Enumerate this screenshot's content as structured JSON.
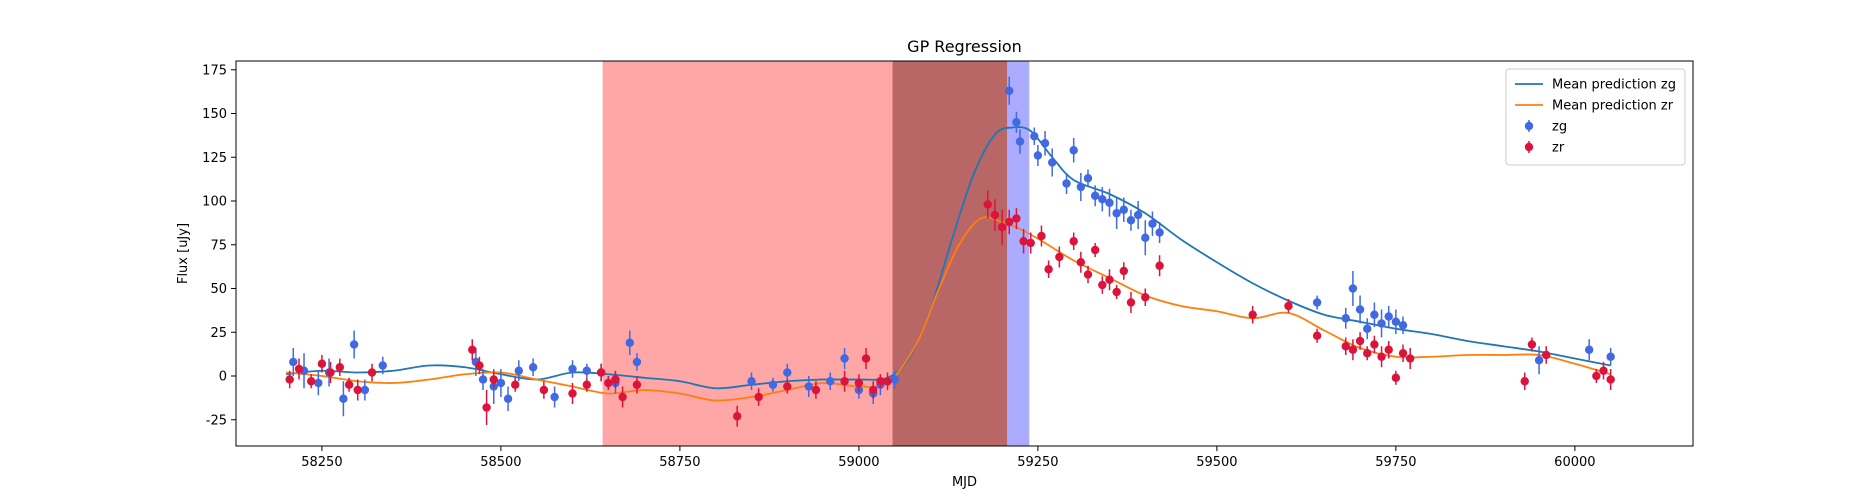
{
  "chart_data": {
    "type": "scatter",
    "title": "GP Regression",
    "xlabel": "MJD",
    "ylabel": "Flux [uJy]",
    "xlim": [
      58130,
      60165
    ],
    "ylim": [
      -40,
      180
    ],
    "xticks": [
      58250,
      58500,
      58750,
      59000,
      59250,
      59500,
      59750,
      60000
    ],
    "yticks": [
      -25,
      0,
      25,
      50,
      75,
      100,
      125,
      150,
      175
    ],
    "grid": false,
    "legend_position": "top-right",
    "shaded_regions": [
      {
        "x0": 58642,
        "x1": 59047,
        "color": "#ff0000",
        "opacity": 0.35
      },
      {
        "x0": 59047,
        "x1": 59207,
        "color": "#8b0000",
        "opacity": 0.6
      },
      {
        "x0": 59207,
        "x1": 59238,
        "color": "#0000ff",
        "opacity": 0.33
      }
    ],
    "series": [
      {
        "name": "Mean prediction zg",
        "kind": "line",
        "color": "#1f77b4",
        "x": [
          58200,
          58250,
          58300,
          58350,
          58400,
          58450,
          58500,
          58550,
          58600,
          58650,
          58700,
          58750,
          58800,
          58850,
          58900,
          58950,
          59000,
          59040,
          59070,
          59100,
          59130,
          59160,
          59190,
          59215,
          59240,
          59270,
          59300,
          59350,
          59400,
          59450,
          59500,
          59550,
          59600,
          59650,
          59700,
          59750,
          59800,
          59850,
          59900,
          59950,
          60000,
          60050
        ],
        "y": [
          1,
          3,
          2,
          3,
          6,
          5,
          1,
          -2,
          2,
          1,
          -1,
          -3,
          -7,
          -5,
          -3,
          -2,
          -2,
          -1,
          10,
          38,
          78,
          115,
          138,
          142,
          140,
          125,
          112,
          104,
          93,
          78,
          65,
          53,
          43,
          35,
          31,
          27,
          24,
          20,
          17,
          14,
          10,
          6
        ]
      },
      {
        "name": "Mean prediction zr",
        "kind": "line",
        "color": "#ff7f0e",
        "x": [
          58200,
          58250,
          58300,
          58350,
          58400,
          58450,
          58500,
          58550,
          58600,
          58650,
          58700,
          58750,
          58800,
          58850,
          58900,
          58950,
          59000,
          59040,
          59080,
          59110,
          59140,
          59170,
          59200,
          59230,
          59260,
          59300,
          59350,
          59400,
          59450,
          59500,
          59550,
          59600,
          59650,
          59700,
          59750,
          59800,
          59850,
          59900,
          59950,
          60000,
          60050
        ],
        "y": [
          2,
          0,
          -3,
          -4,
          -2,
          1,
          2,
          -2,
          -6,
          -10,
          -8,
          -10,
          -14,
          -12,
          -8,
          -4,
          -6,
          -4,
          18,
          48,
          75,
          90,
          88,
          83,
          76,
          66,
          56,
          46,
          40,
          37,
          33,
          36,
          26,
          16,
          11,
          11,
          12,
          12,
          12,
          7,
          1
        ]
      },
      {
        "name": "zg",
        "kind": "errorbar",
        "color": "#4169e1",
        "x": [
          58210,
          58225,
          58245,
          58260,
          58280,
          58295,
          58310,
          58335,
          58465,
          58475,
          58490,
          58500,
          58510,
          58525,
          58545,
          58575,
          58600,
          58620,
          58640,
          58660,
          58680,
          58690,
          58850,
          58880,
          58900,
          58930,
          58960,
          58980,
          59000,
          59020,
          59030,
          59050,
          59210,
          59220,
          59225,
          59245,
          59250,
          59260,
          59270,
          59290,
          59300,
          59310,
          59320,
          59330,
          59340,
          59350,
          59360,
          59370,
          59380,
          59390,
          59400,
          59410,
          59420,
          59640,
          59680,
          59690,
          59700,
          59710,
          59720,
          59730,
          59740,
          59750,
          59760,
          59950,
          60020,
          60050
        ],
        "y": [
          8,
          3,
          -4,
          2,
          -13,
          18,
          -8,
          6,
          8,
          -2,
          -6,
          -4,
          -13,
          3,
          5,
          -12,
          4,
          3,
          2,
          -4,
          19,
          8,
          -3,
          -5,
          2,
          -6,
          -3,
          10,
          -8,
          -10,
          -5,
          -2,
          163,
          145,
          134,
          137,
          126,
          133,
          122,
          110,
          129,
          108,
          113,
          103,
          101,
          99,
          93,
          95,
          89,
          92,
          79,
          87,
          82,
          42,
          33,
          50,
          38,
          27,
          35,
          30,
          34,
          31,
          29,
          9,
          15,
          11
        ],
        "err": [
          8,
          10,
          7,
          8,
          10,
          8,
          6,
          5,
          8,
          6,
          10,
          8,
          7,
          6,
          5,
          6,
          5,
          4,
          5,
          6,
          7,
          5,
          5,
          4,
          5,
          6,
          5,
          6,
          5,
          6,
          6,
          5,
          8,
          6,
          7,
          5,
          6,
          7,
          8,
          6,
          7,
          8,
          5,
          6,
          7,
          8,
          9,
          7,
          6,
          8,
          10,
          7,
          6,
          4,
          6,
          10,
          8,
          6,
          7,
          8,
          6,
          7,
          5,
          8,
          6,
          5
        ]
      },
      {
        "name": "zr",
        "kind": "errorbar",
        "color": "#dc143c",
        "x": [
          58205,
          58218,
          58235,
          58250,
          58262,
          58275,
          58288,
          58300,
          58320,
          58460,
          58470,
          58480,
          58490,
          58520,
          58560,
          58600,
          58620,
          58640,
          58650,
          58660,
          58670,
          58690,
          58830,
          58860,
          58900,
          58940,
          58980,
          59000,
          59010,
          59020,
          59030,
          59040,
          59180,
          59190,
          59200,
          59210,
          59220,
          59230,
          59240,
          59255,
          59265,
          59280,
          59300,
          59310,
          59320,
          59330,
          59340,
          59350,
          59360,
          59370,
          59380,
          59400,
          59420,
          59550,
          59600,
          59640,
          59680,
          59690,
          59700,
          59710,
          59720,
          59730,
          59740,
          59750,
          59760,
          59770,
          59930,
          59940,
          59960,
          60030,
          60040,
          60050
        ],
        "y": [
          -2,
          4,
          -3,
          7,
          2,
          5,
          -5,
          -8,
          2,
          15,
          6,
          -18,
          -2,
          -5,
          -8,
          -10,
          -5,
          2,
          -4,
          -2,
          -12,
          -5,
          -23,
          -12,
          -6,
          -8,
          -3,
          -4,
          10,
          -8,
          -3,
          -3,
          98,
          92,
          85,
          88,
          90,
          77,
          76,
          80,
          61,
          68,
          77,
          65,
          58,
          72,
          52,
          55,
          48,
          60,
          42,
          45,
          63,
          35,
          40,
          23,
          17,
          15,
          20,
          13,
          18,
          11,
          15,
          -1,
          13,
          10,
          -3,
          18,
          12,
          0,
          3,
          -2
        ],
        "err": [
          5,
          6,
          4,
          5,
          6,
          5,
          4,
          6,
          5,
          6,
          5,
          10,
          5,
          4,
          5,
          6,
          4,
          5,
          4,
          5,
          6,
          5,
          6,
          5,
          4,
          5,
          6,
          5,
          6,
          5,
          4,
          5,
          8,
          9,
          10,
          7,
          6,
          7,
          6,
          6,
          5,
          6,
          5,
          6,
          5,
          4,
          5,
          6,
          4,
          5,
          6,
          5,
          6,
          5,
          4,
          4,
          5,
          6,
          5,
          4,
          5,
          6,
          5,
          4,
          5,
          6,
          5,
          4,
          5,
          4,
          5,
          6
        ]
      }
    ]
  }
}
